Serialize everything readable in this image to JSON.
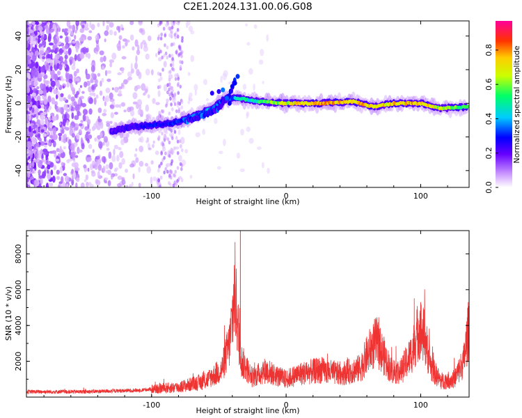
{
  "title": "C2E1.2024.131.00.06.G08",
  "chart_data": [
    {
      "type": "heatmap",
      "xlabel": "Height of straight line (km)",
      "ylabel": "Frequency (Hz)",
      "xlim": [
        -193,
        136
      ],
      "ylim": [
        -50,
        49
      ],
      "x_ticks": [
        -100,
        0,
        100
      ],
      "y_ticks": [
        -40,
        -20,
        0,
        20,
        40
      ],
      "colorbar": {
        "label": "Normalized spectral amplitude",
        "range": [
          0,
          0.97
        ],
        "ticks": [
          0.0,
          0.2,
          0.4,
          0.6,
          0.8
        ],
        "colormap": [
          "#ffffff",
          "#cc99ff",
          "#6600ff",
          "#0000ff",
          "#00ccff",
          "#00ff66",
          "#ccff00",
          "#ffcc00",
          "#ff3300",
          "#ff0099"
        ]
      },
      "ridge": [
        {
          "x": -130,
          "y": -17,
          "amp": 0.25
        },
        {
          "x": -115,
          "y": -14,
          "amp": 0.3
        },
        {
          "x": -100,
          "y": -13,
          "amp": 0.33
        },
        {
          "x": -85,
          "y": -12,
          "amp": 0.36
        },
        {
          "x": -70,
          "y": -8,
          "amp": 0.4
        },
        {
          "x": -55,
          "y": -3,
          "amp": 0.42
        },
        {
          "x": -45,
          "y": 3,
          "amp": 0.35
        },
        {
          "x": -35,
          "y": 3,
          "amp": 0.5
        },
        {
          "x": -20,
          "y": 1,
          "amp": 0.55
        },
        {
          "x": 0,
          "y": 0,
          "amp": 0.72
        },
        {
          "x": 25,
          "y": 0,
          "amp": 0.82
        },
        {
          "x": 50,
          "y": 1,
          "amp": 0.82
        },
        {
          "x": 65,
          "y": -2,
          "amp": 0.78
        },
        {
          "x": 80,
          "y": 0,
          "amp": 0.8
        },
        {
          "x": 100,
          "y": 0,
          "amp": 0.8
        },
        {
          "x": 115,
          "y": -3,
          "amp": 0.7
        },
        {
          "x": 135,
          "y": -2,
          "amp": 0.6
        }
      ],
      "branch": [
        {
          "x": -75,
          "y": -11
        },
        {
          "x": -60,
          "y": -7
        },
        {
          "x": -50,
          "y": -3
        },
        {
          "x": -42,
          "y": 5
        },
        {
          "x": -38,
          "y": 14
        }
      ]
    },
    {
      "type": "line",
      "xlabel": "Height of straight line (km)",
      "ylabel": "SNR (10 * v/v)",
      "xlim": [
        -193,
        136
      ],
      "ylim": [
        0,
        9300
      ],
      "x_ticks": [
        -100,
        0,
        100
      ],
      "y_ticks": [
        2000,
        4000,
        6000,
        8000
      ],
      "color": "#ee3333",
      "envelope": [
        {
          "x": -193,
          "y": 300
        },
        {
          "x": -150,
          "y": 300
        },
        {
          "x": -110,
          "y": 380
        },
        {
          "x": -100,
          "y": 450
        },
        {
          "x": -80,
          "y": 550
        },
        {
          "x": -60,
          "y": 900
        },
        {
          "x": -48,
          "y": 1500
        },
        {
          "x": -42,
          "y": 3000
        },
        {
          "x": -38,
          "y": 6000
        },
        {
          "x": -36,
          "y": 4000
        },
        {
          "x": -33,
          "y": 2000
        },
        {
          "x": -25,
          "y": 1100
        },
        {
          "x": -15,
          "y": 1500
        },
        {
          "x": -8,
          "y": 1200
        },
        {
          "x": 0,
          "y": 1000
        },
        {
          "x": 10,
          "y": 1300
        },
        {
          "x": 25,
          "y": 1500
        },
        {
          "x": 40,
          "y": 1300
        },
        {
          "x": 55,
          "y": 1600
        },
        {
          "x": 62,
          "y": 2600
        },
        {
          "x": 67,
          "y": 3100
        },
        {
          "x": 72,
          "y": 2400
        },
        {
          "x": 78,
          "y": 1500
        },
        {
          "x": 85,
          "y": 1400
        },
        {
          "x": 93,
          "y": 2400
        },
        {
          "x": 99,
          "y": 3900
        },
        {
          "x": 103,
          "y": 3300
        },
        {
          "x": 108,
          "y": 1600
        },
        {
          "x": 115,
          "y": 900
        },
        {
          "x": 125,
          "y": 1000
        },
        {
          "x": 132,
          "y": 2000
        },
        {
          "x": 136,
          "y": 4000
        }
      ],
      "spikes": [
        {
          "x": -34,
          "y": 9300
        },
        {
          "x": 100,
          "y": 5300
        },
        {
          "x": 136,
          "y": 4600
        }
      ]
    }
  ]
}
